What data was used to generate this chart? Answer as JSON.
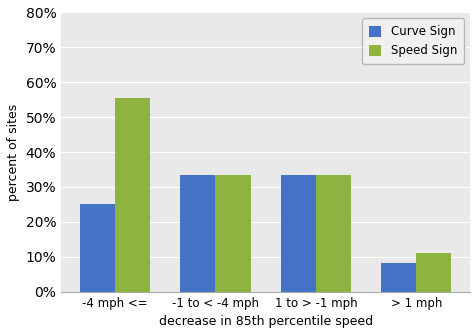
{
  "categories": [
    "-4 mph <=",
    "-1 to < -4 mph",
    "1 to > -1 mph",
    "> 1 mph"
  ],
  "curve_sign": [
    0.25,
    0.333,
    0.333,
    0.083
  ],
  "speed_sign": [
    0.556,
    0.333,
    0.333,
    0.111
  ],
  "curve_color": "#4472C4",
  "speed_color": "#8DB441",
  "xlabel": "decrease in 85th percentile speed",
  "ylabel": "percent of sites",
  "ylim": [
    0,
    0.8
  ],
  "yticks": [
    0.0,
    0.1,
    0.2,
    0.3,
    0.4,
    0.5,
    0.6,
    0.7,
    0.8
  ],
  "legend_labels": [
    "Curve Sign",
    "Speed Sign"
  ],
  "bar_width": 0.35,
  "background_color": "#FFFFFF",
  "plot_bg_color": "#E9E9E9",
  "grid_color": "#FFFFFF"
}
